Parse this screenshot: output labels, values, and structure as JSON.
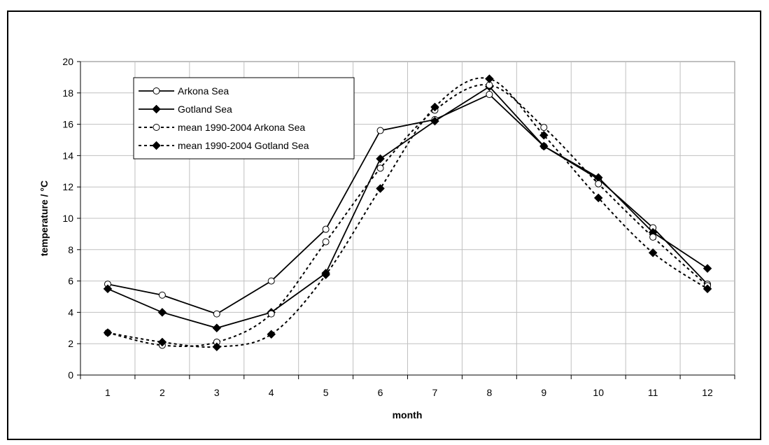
{
  "chart_data": {
    "type": "line",
    "title": "",
    "xlabel": "month",
    "ylabel": "temperature / °C",
    "x": [
      1,
      2,
      3,
      4,
      5,
      6,
      7,
      8,
      9,
      10,
      11,
      12
    ],
    "xlim": [
      0.5,
      12.5
    ],
    "ylim": [
      0,
      20
    ],
    "yticks": [
      0,
      2,
      4,
      6,
      8,
      10,
      12,
      14,
      16,
      18,
      20
    ],
    "grid": true,
    "legend_position": "top-left",
    "series": [
      {
        "name": "Arkona Sea",
        "values": [
          5.8,
          5.1,
          3.9,
          6.0,
          9.3,
          15.6,
          16.3,
          17.9,
          14.6,
          12.5,
          9.4,
          5.8
        ],
        "line": "solid",
        "marker": "circle-open",
        "smooth": false,
        "color": "#000000"
      },
      {
        "name": "Gotland Sea",
        "values": [
          5.5,
          4.0,
          3.0,
          4.0,
          6.5,
          13.8,
          16.2,
          18.4,
          14.6,
          12.6,
          9.1,
          6.8
        ],
        "line": "solid",
        "marker": "diamond-filled",
        "smooth": false,
        "color": "#000000"
      },
      {
        "name": "mean 1990-2004 Arkona Sea",
        "values": [
          2.7,
          1.9,
          2.1,
          3.9,
          8.5,
          13.2,
          16.9,
          18.5,
          15.8,
          12.2,
          8.8,
          5.7
        ],
        "line": "dotted",
        "marker": "circle-open",
        "smooth": true,
        "color": "#000000"
      },
      {
        "name": "mean 1990-2004 Gotland Sea",
        "values": [
          2.7,
          2.1,
          1.8,
          2.6,
          6.4,
          11.9,
          17.1,
          18.9,
          15.3,
          11.3,
          7.8,
          5.5
        ],
        "line": "dotted",
        "marker": "diamond-filled",
        "smooth": true,
        "color": "#000000"
      }
    ]
  }
}
